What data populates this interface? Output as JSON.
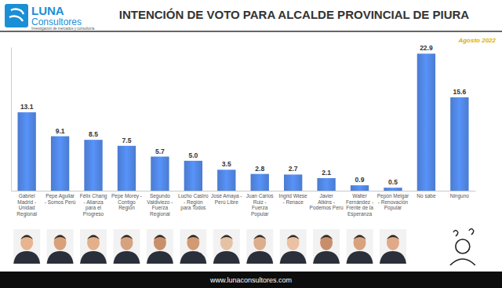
{
  "chart_data": {
    "type": "bar",
    "title": "INTENCIÓN DE VOTO PARA ALCALDE PROVINCIAL DE PIURA",
    "subtitle": "Agosto 2022",
    "annotations": [
      "LUNA",
      "Consultores",
      "Investigación de mercados y consultoría",
      "www.lunaconsultores.com"
    ],
    "categories": [
      "Gabriel Madrid - Unidad Regional",
      "Pepe Aguilar - Somos Perú",
      "Félix Chang - Alianza para el Progreso",
      "Pepe Morey - Contigo Región",
      "Segundo Valdiviezo - Fuerza Regional",
      "Lucho Castro - Región para Todos",
      "José Amaya - Perú Libre",
      "Juan Carlos Ruiz - Fuerza Popular",
      "Ingrid Wiese - Renace",
      "Javier Atkins - Podemos Perú",
      "Walter Fernández - Frente de la Esperanza",
      "Pepón Melgar - Renovación Popular",
      "No sabe",
      "Ninguno"
    ],
    "values": [
      13.1,
      9.1,
      8.5,
      7.5,
      5.7,
      5.0,
      3.5,
      2.8,
      2.7,
      2.1,
      0.9,
      0.5,
      22.9,
      15.6
    ],
    "value_labels": [
      "13.1",
      "9.1",
      "8.5",
      "7.5",
      "5.7",
      "5.0",
      "3.5",
      "2.8",
      "2.7",
      "2.1",
      "0.9",
      "0.5",
      "22.9",
      "15.6"
    ],
    "color": "#4a7bd0",
    "ylim": [
      0,
      24
    ],
    "data_labels": true,
    "tick_labels": "x",
    "grid": false
  }
}
